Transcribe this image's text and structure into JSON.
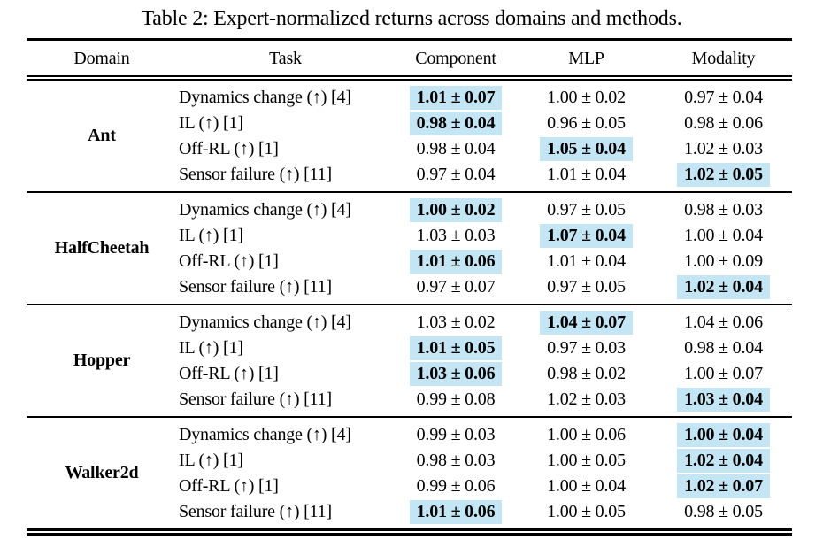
{
  "caption": "Table 2: Expert-normalized returns across domains and methods.",
  "columns": [
    "Domain",
    "Task",
    "Component",
    "MLP",
    "Modality"
  ],
  "highlight_color": "#c4e5f4",
  "groups": [
    {
      "domain": "Ant",
      "rows": [
        {
          "task": "Dynamics change (↑) [4]",
          "values": [
            "1.01 ± 0.07",
            "1.00 ± 0.02",
            "0.97 ± 0.04"
          ],
          "highlight": 0
        },
        {
          "task": "IL (↑) [1]",
          "values": [
            "0.98 ± 0.04",
            "0.96 ± 0.05",
            "0.98 ± 0.06"
          ],
          "highlight": 0
        },
        {
          "task": "Off-RL (↑) [1]",
          "values": [
            "0.98 ± 0.04",
            "1.05 ± 0.04",
            "1.02 ± 0.03"
          ],
          "highlight": 1
        },
        {
          "task": "Sensor failure (↑) [11]",
          "values": [
            "0.97 ± 0.04",
            "1.01 ± 0.04",
            "1.02 ± 0.05"
          ],
          "highlight": 2
        }
      ]
    },
    {
      "domain": "HalfCheetah",
      "rows": [
        {
          "task": "Dynamics change (↑) [4]",
          "values": [
            "1.00 ± 0.02",
            "0.97 ± 0.05",
            "0.98 ± 0.03"
          ],
          "highlight": 0
        },
        {
          "task": "IL (↑) [1]",
          "values": [
            "1.03 ± 0.03",
            "1.07 ± 0.04",
            "1.00 ± 0.04"
          ],
          "highlight": 1
        },
        {
          "task": "Off-RL (↑) [1]",
          "values": [
            "1.01 ± 0.06",
            "1.01 ± 0.04",
            "1.00 ± 0.09"
          ],
          "highlight": 0
        },
        {
          "task": "Sensor failure (↑) [11]",
          "values": [
            "0.97 ± 0.07",
            "0.97 ± 0.05",
            "1.02 ± 0.04"
          ],
          "highlight": 2
        }
      ]
    },
    {
      "domain": "Hopper",
      "rows": [
        {
          "task": "Dynamics change (↑) [4]",
          "values": [
            "1.03 ± 0.02",
            "1.04 ± 0.07",
            "1.04 ± 0.06"
          ],
          "highlight": 1
        },
        {
          "task": "IL (↑) [1]",
          "values": [
            "1.01 ± 0.05",
            "0.97 ± 0.03",
            "0.98 ± 0.04"
          ],
          "highlight": 0
        },
        {
          "task": "Off-RL (↑) [1]",
          "values": [
            "1.03 ± 0.06",
            "0.98 ± 0.02",
            "1.00 ± 0.07"
          ],
          "highlight": 0
        },
        {
          "task": "Sensor failure (↑) [11]",
          "values": [
            "0.99 ± 0.08",
            "1.02 ± 0.03",
            "1.03 ± 0.04"
          ],
          "highlight": 2
        }
      ]
    },
    {
      "domain": "Walker2d",
      "rows": [
        {
          "task": "Dynamics change (↑) [4]",
          "values": [
            "0.99 ± 0.03",
            "1.00 ± 0.06",
            "1.00 ± 0.04"
          ],
          "highlight": 2
        },
        {
          "task": "IL (↑) [1]",
          "values": [
            "0.98 ± 0.03",
            "1.00 ± 0.05",
            "1.02 ± 0.04"
          ],
          "highlight": 2
        },
        {
          "task": "Off-RL (↑) [1]",
          "values": [
            "0.99 ± 0.06",
            "1.00 ± 0.04",
            "1.02 ± 0.07"
          ],
          "highlight": 2
        },
        {
          "task": "Sensor failure (↑) [11]",
          "values": [
            "1.01 ± 0.06",
            "1.00 ± 0.05",
            "0.98 ± 0.05"
          ],
          "highlight": 0
        }
      ]
    }
  ]
}
